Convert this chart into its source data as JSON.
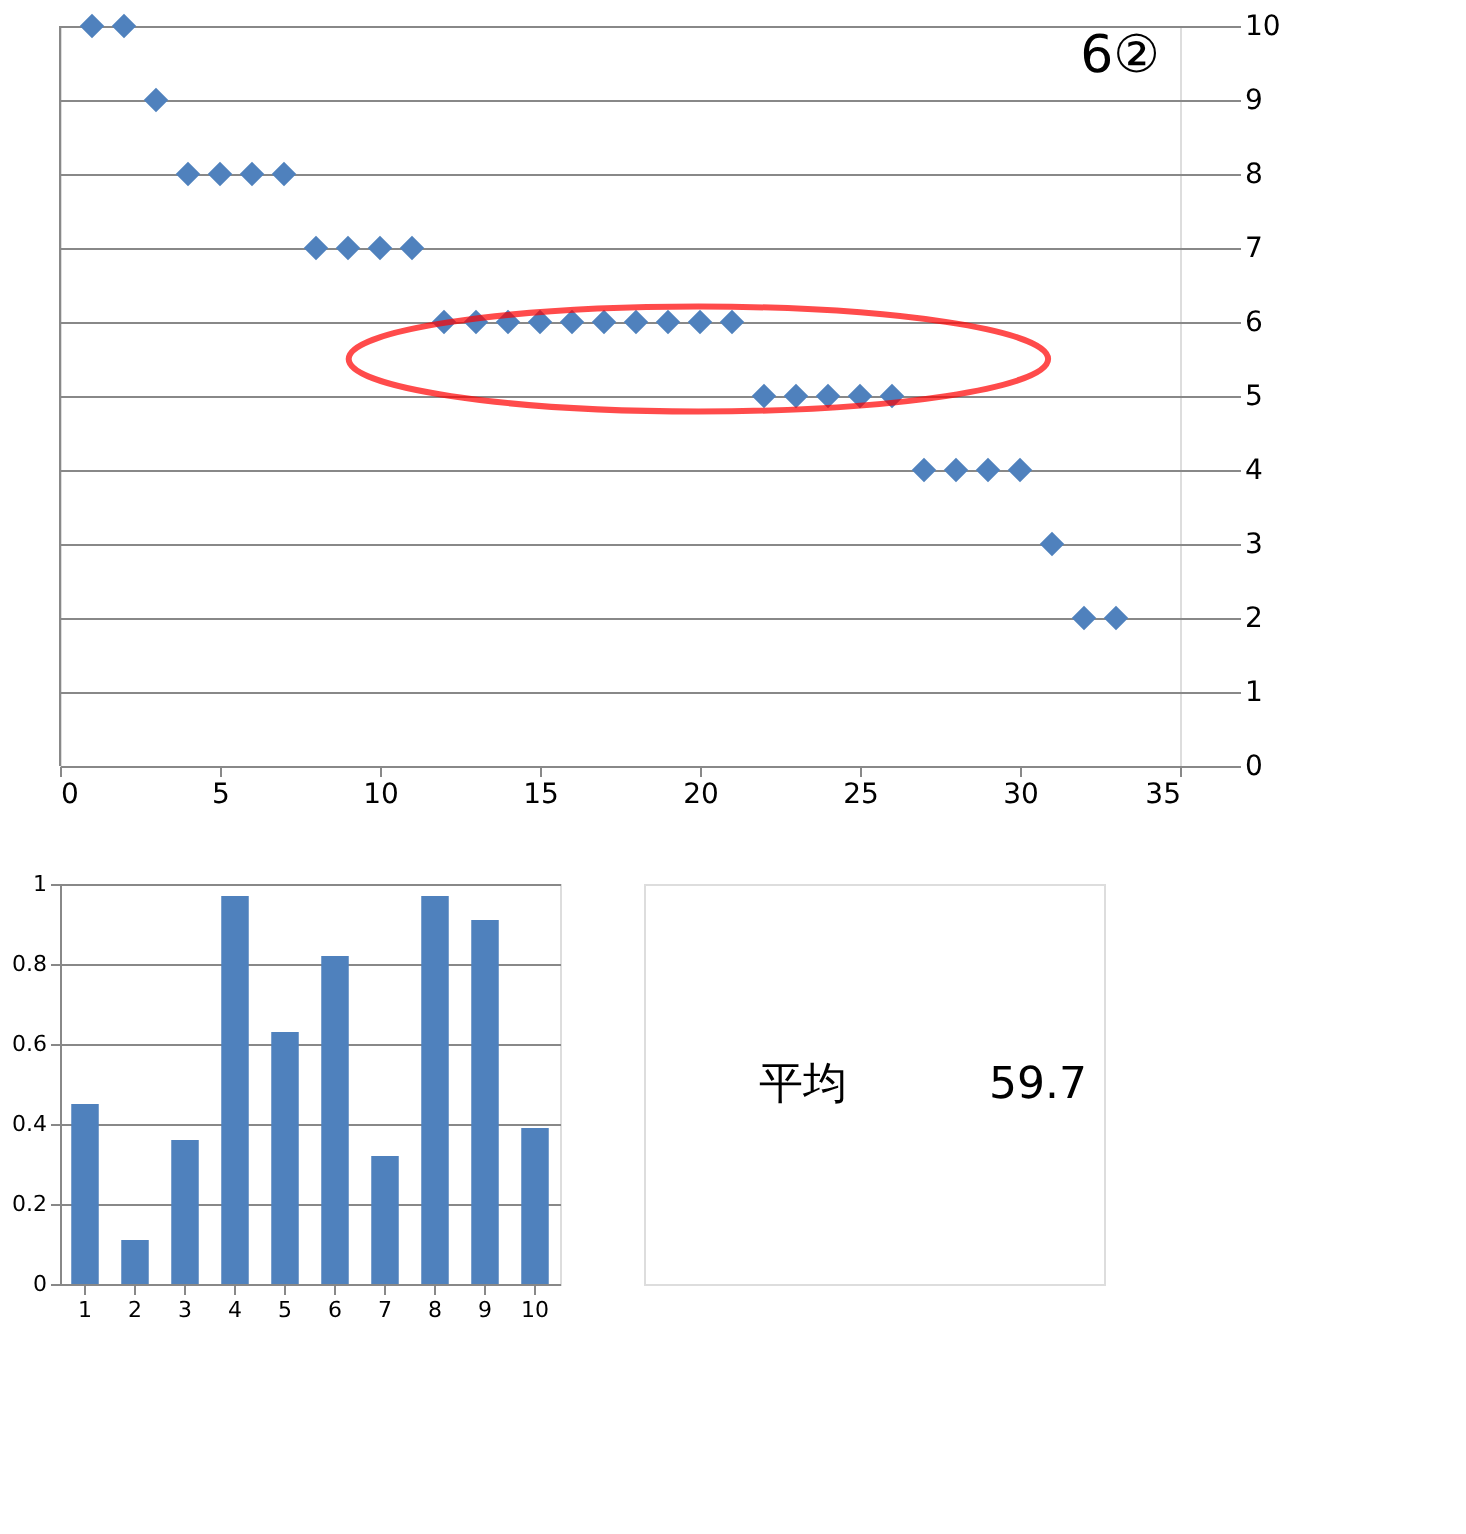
{
  "chart_data": [
    {
      "type": "scatter",
      "title": "6②",
      "x": [
        1,
        2,
        3,
        4,
        5,
        6,
        7,
        8,
        9,
        10,
        11,
        12,
        13,
        14,
        15,
        16,
        17,
        18,
        19,
        20,
        21,
        22,
        23,
        24,
        25,
        26,
        27,
        28,
        29,
        30,
        31,
        32,
        33
      ],
      "series": [
        {
          "color": "#4f81bd",
          "values": [
            10,
            10,
            9,
            8,
            8,
            8,
            8,
            7,
            7,
            7,
            7,
            6,
            6,
            6,
            6,
            6,
            6,
            6,
            6,
            6,
            6,
            5,
            5,
            5,
            5,
            5,
            4,
            4,
            4,
            4,
            3,
            2,
            2
          ]
        }
      ],
      "xlim": [
        0,
        35
      ],
      "xticks": [
        0,
        5,
        10,
        15,
        20,
        25,
        30,
        35
      ],
      "ylim": [
        0,
        10
      ],
      "yticks": [
        0,
        1,
        2,
        3,
        4,
        5,
        6,
        7,
        8,
        9,
        10
      ],
      "grid": "y",
      "marker": "diamond",
      "legend": false,
      "annotations": [
        "平均",
        "59.7"
      ]
    },
    {
      "type": "bar",
      "categories": [
        "1",
        "2",
        "3",
        "4",
        "5",
        "6",
        "7",
        "8",
        "9",
        "10"
      ],
      "series": [
        {
          "color": "#4f81bd",
          "values": [
            0.45,
            0.11,
            0.36,
            0.97,
            0.63,
            0.82,
            0.32,
            0.97,
            0.91,
            0.39
          ]
        }
      ],
      "ylim": [
        0,
        1
      ],
      "yticks": [
        0,
        0.2,
        0.4,
        0.6,
        0.8,
        1
      ],
      "grid": "y",
      "legend": false
    }
  ]
}
